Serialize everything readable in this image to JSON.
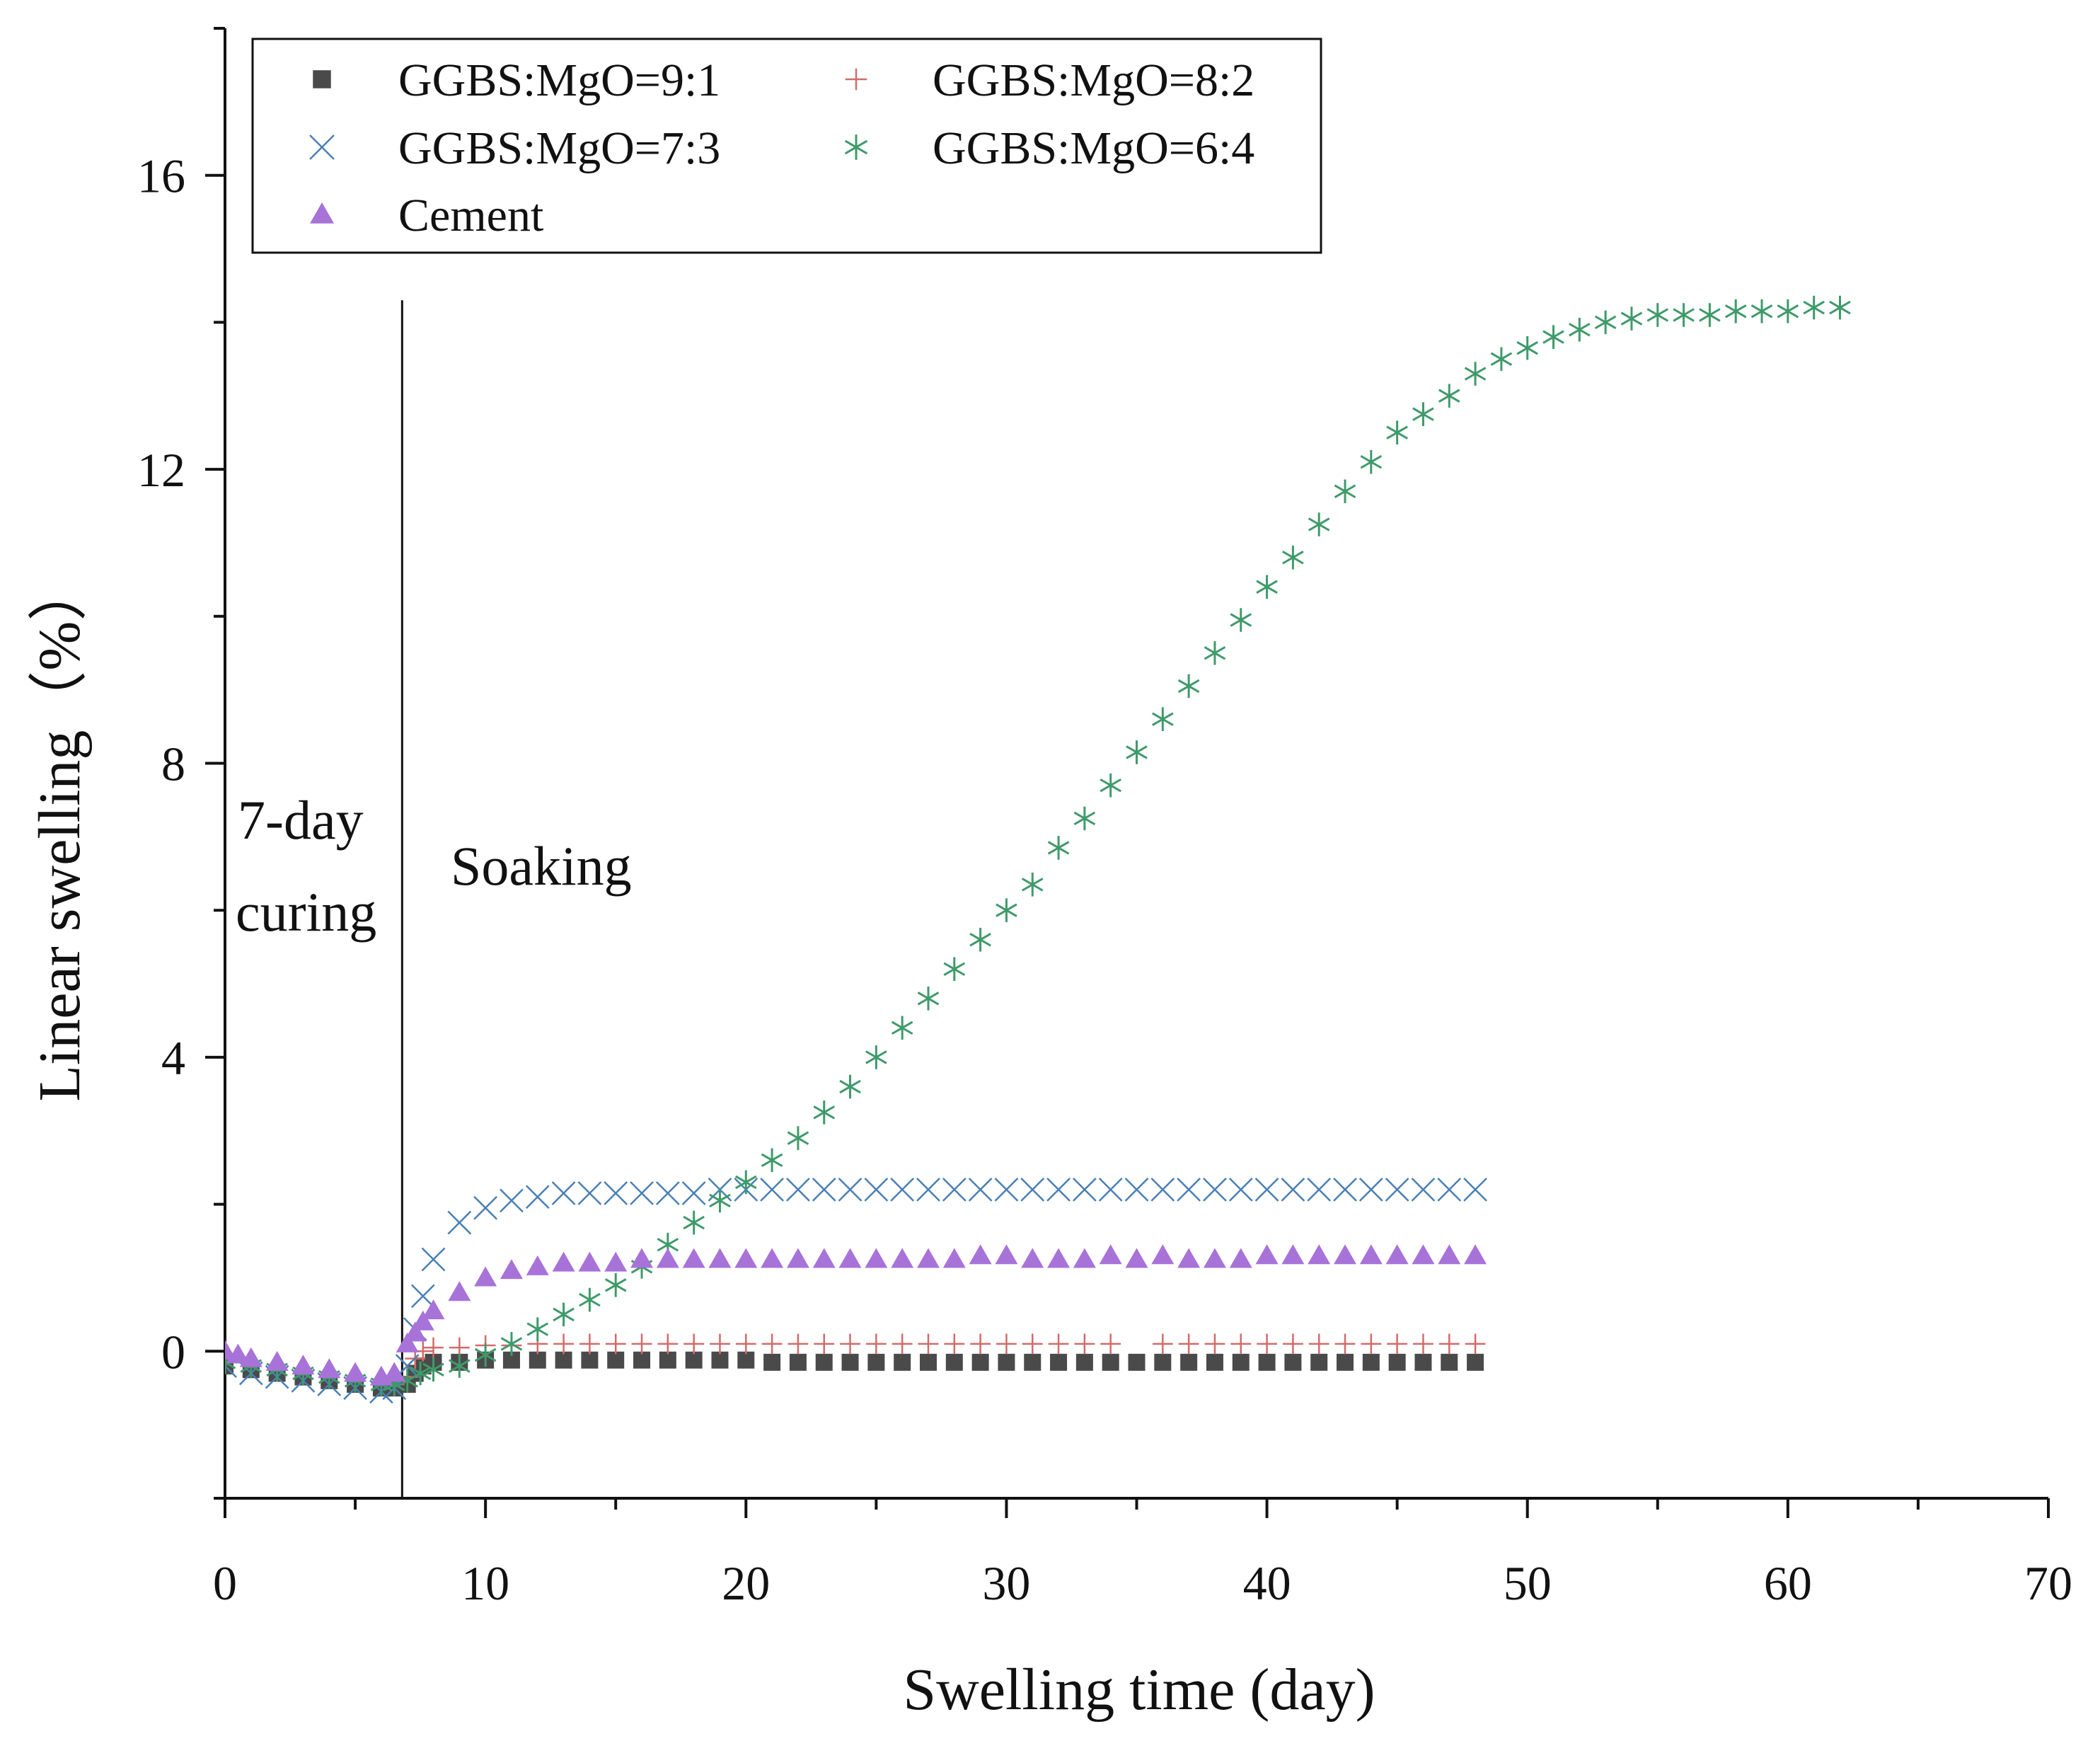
{
  "chart_data": {
    "type": "scatter",
    "xlabel": "Swelling time (day)",
    "ylabel": "Linear swelling（%）",
    "xlim": [
      0,
      70
    ],
    "ylim": [
      -2,
      18
    ],
    "x_ticks": [
      0,
      10,
      20,
      30,
      40,
      50,
      60,
      70
    ],
    "x_tick_labels": [
      "0",
      "10",
      "20",
      "30",
      "40",
      "50",
      "60",
      "70"
    ],
    "y_ticks": [
      0,
      4,
      8,
      12,
      16
    ],
    "y_tick_labels": [
      "0",
      "4",
      "8",
      "12",
      "16"
    ],
    "grid": false,
    "legend_position": "top-left",
    "annotations": {
      "curing_line1": "7-day",
      "curing_line2": "curing",
      "soaking": "Soaking",
      "divider_x": 6.8
    },
    "series": [
      {
        "name": "GGBS:MgO=9:1",
        "marker": "square",
        "color": "#4a4a4a",
        "x": [
          0,
          1,
          2,
          3,
          4,
          5,
          6,
          6.5,
          7,
          7.3,
          7.6,
          8,
          9,
          10,
          11,
          12,
          13,
          14,
          15,
          16,
          17,
          18,
          19,
          20,
          21,
          22,
          23,
          24,
          25,
          26,
          27,
          28,
          29,
          30,
          31,
          32,
          33,
          34,
          35,
          36,
          37,
          38,
          39,
          40,
          41,
          42,
          43,
          44,
          45,
          46,
          47,
          48
        ],
        "y": [
          -0.2,
          -0.25,
          -0.3,
          -0.35,
          -0.4,
          -0.45,
          -0.5,
          -0.5,
          -0.45,
          -0.3,
          -0.2,
          -0.15,
          -0.15,
          -0.12,
          -0.12,
          -0.12,
          -0.12,
          -0.12,
          -0.12,
          -0.12,
          -0.12,
          -0.12,
          -0.12,
          -0.12,
          -0.15,
          -0.15,
          -0.15,
          -0.15,
          -0.15,
          -0.15,
          -0.15,
          -0.15,
          -0.15,
          -0.15,
          -0.15,
          -0.15,
          -0.15,
          -0.15,
          -0.15,
          -0.15,
          -0.15,
          -0.15,
          -0.15,
          -0.15,
          -0.15,
          -0.15,
          -0.15,
          -0.15,
          -0.15,
          -0.15,
          -0.15,
          -0.15
        ]
      },
      {
        "name": "GGBS:MgO=8:2",
        "marker": "plus",
        "color": "#d46a6a",
        "x": [
          0,
          1,
          2,
          3,
          4,
          5,
          6,
          6.5,
          7,
          7.3,
          7.6,
          8,
          9,
          10,
          11,
          12,
          13,
          14,
          15,
          16,
          17,
          18,
          19,
          20,
          21,
          22,
          23,
          24,
          25,
          26,
          27,
          28,
          29,
          30,
          31,
          32,
          33,
          34,
          36,
          37,
          38,
          39,
          40,
          41,
          42,
          43,
          44,
          45,
          46,
          47,
          48
        ],
        "y": [
          -0.15,
          -0.2,
          -0.25,
          -0.3,
          -0.35,
          -0.4,
          -0.45,
          -0.45,
          -0.35,
          -0.1,
          0.0,
          0.05,
          0.05,
          0.08,
          0.08,
          0.1,
          0.1,
          0.1,
          0.1,
          0.1,
          0.1,
          0.1,
          0.1,
          0.1,
          0.1,
          0.1,
          0.1,
          0.1,
          0.1,
          0.1,
          0.1,
          0.1,
          0.1,
          0.1,
          0.1,
          0.1,
          0.1,
          0.1,
          0.1,
          0.1,
          0.1,
          0.1,
          0.1,
          0.1,
          0.1,
          0.1,
          0.1,
          0.1,
          0.1,
          0.1,
          0.1
        ]
      },
      {
        "name": "GGBS:MgO=7:3",
        "marker": "x",
        "color": "#4a7fb5",
        "x": [
          0,
          1,
          2,
          3,
          4,
          5,
          6,
          6.5,
          7,
          7.3,
          7.6,
          8,
          9,
          10,
          11,
          12,
          13,
          14,
          15,
          16,
          17,
          18,
          19,
          20,
          21,
          22,
          23,
          24,
          25,
          26,
          27,
          28,
          29,
          30,
          31,
          32,
          33,
          34,
          35,
          36,
          37,
          38,
          39,
          40,
          41,
          42,
          43,
          44,
          45,
          46,
          47,
          48
        ],
        "y": [
          -0.2,
          -0.3,
          -0.35,
          -0.4,
          -0.45,
          -0.5,
          -0.55,
          -0.5,
          -0.2,
          0.3,
          0.75,
          1.25,
          1.75,
          1.95,
          2.05,
          2.1,
          2.15,
          2.15,
          2.15,
          2.15,
          2.15,
          2.15,
          2.2,
          2.2,
          2.2,
          2.2,
          2.2,
          2.2,
          2.2,
          2.2,
          2.2,
          2.2,
          2.2,
          2.2,
          2.2,
          2.2,
          2.2,
          2.2,
          2.2,
          2.2,
          2.2,
          2.2,
          2.2,
          2.2,
          2.2,
          2.2,
          2.2,
          2.2,
          2.2,
          2.2,
          2.2,
          2.2
        ]
      },
      {
        "name": "GGBS:MgO=6:4",
        "marker": "asterisk",
        "color": "#3f9a6a",
        "x": [
          0,
          1,
          2,
          3,
          4,
          5,
          6,
          6.5,
          7,
          7.5,
          8,
          9,
          10,
          11,
          12,
          13,
          14,
          15,
          16,
          17,
          18,
          19,
          20,
          21,
          22,
          23,
          24,
          25,
          26,
          27,
          28,
          29,
          30,
          31,
          32,
          33,
          34,
          35,
          36,
          37,
          38,
          39,
          40,
          41,
          42,
          43,
          44,
          45,
          46,
          47,
          48,
          49,
          50,
          51,
          52,
          53,
          54,
          55,
          56,
          57,
          58,
          59,
          60,
          61,
          62
        ],
        "y": [
          -0.15,
          -0.2,
          -0.25,
          -0.3,
          -0.35,
          -0.4,
          -0.45,
          -0.45,
          -0.4,
          -0.3,
          -0.25,
          -0.2,
          -0.05,
          0.1,
          0.3,
          0.5,
          0.7,
          0.9,
          1.15,
          1.45,
          1.75,
          2.05,
          2.3,
          2.6,
          2.9,
          3.25,
          3.6,
          4.0,
          4.4,
          4.8,
          5.2,
          5.6,
          6.0,
          6.35,
          6.85,
          7.25,
          7.7,
          8.15,
          8.6,
          9.05,
          9.5,
          9.95,
          10.4,
          10.8,
          11.25,
          11.7,
          12.1,
          12.5,
          12.75,
          13.0,
          13.3,
          13.5,
          13.65,
          13.8,
          13.9,
          14.0,
          14.05,
          14.1,
          14.1,
          14.1,
          14.15,
          14.15,
          14.15,
          14.2,
          14.2
        ]
      },
      {
        "name": "Cement",
        "marker": "triangle",
        "color": "#a873d8",
        "x": [
          0,
          0.5,
          1,
          2,
          3,
          4,
          5,
          6,
          6.5,
          7,
          7.3,
          7.6,
          8,
          9,
          10,
          11,
          12,
          13,
          14,
          15,
          16,
          17,
          18,
          19,
          20,
          21,
          22,
          23,
          24,
          25,
          26,
          27,
          28,
          29,
          30,
          31,
          32,
          33,
          34,
          35,
          36,
          37,
          38,
          39,
          40,
          41,
          42,
          43,
          44,
          45,
          46,
          47,
          48
        ],
        "y": [
          0.0,
          -0.05,
          -0.1,
          -0.15,
          -0.2,
          -0.25,
          -0.3,
          -0.35,
          -0.3,
          0.1,
          0.25,
          0.4,
          0.55,
          0.8,
          1.0,
          1.1,
          1.15,
          1.2,
          1.2,
          1.2,
          1.25,
          1.25,
          1.25,
          1.25,
          1.25,
          1.25,
          1.25,
          1.25,
          1.25,
          1.25,
          1.25,
          1.25,
          1.25,
          1.3,
          1.3,
          1.25,
          1.25,
          1.25,
          1.3,
          1.25,
          1.3,
          1.25,
          1.25,
          1.25,
          1.3,
          1.3,
          1.3,
          1.3,
          1.3,
          1.3,
          1.3,
          1.3,
          1.3
        ]
      }
    ]
  }
}
